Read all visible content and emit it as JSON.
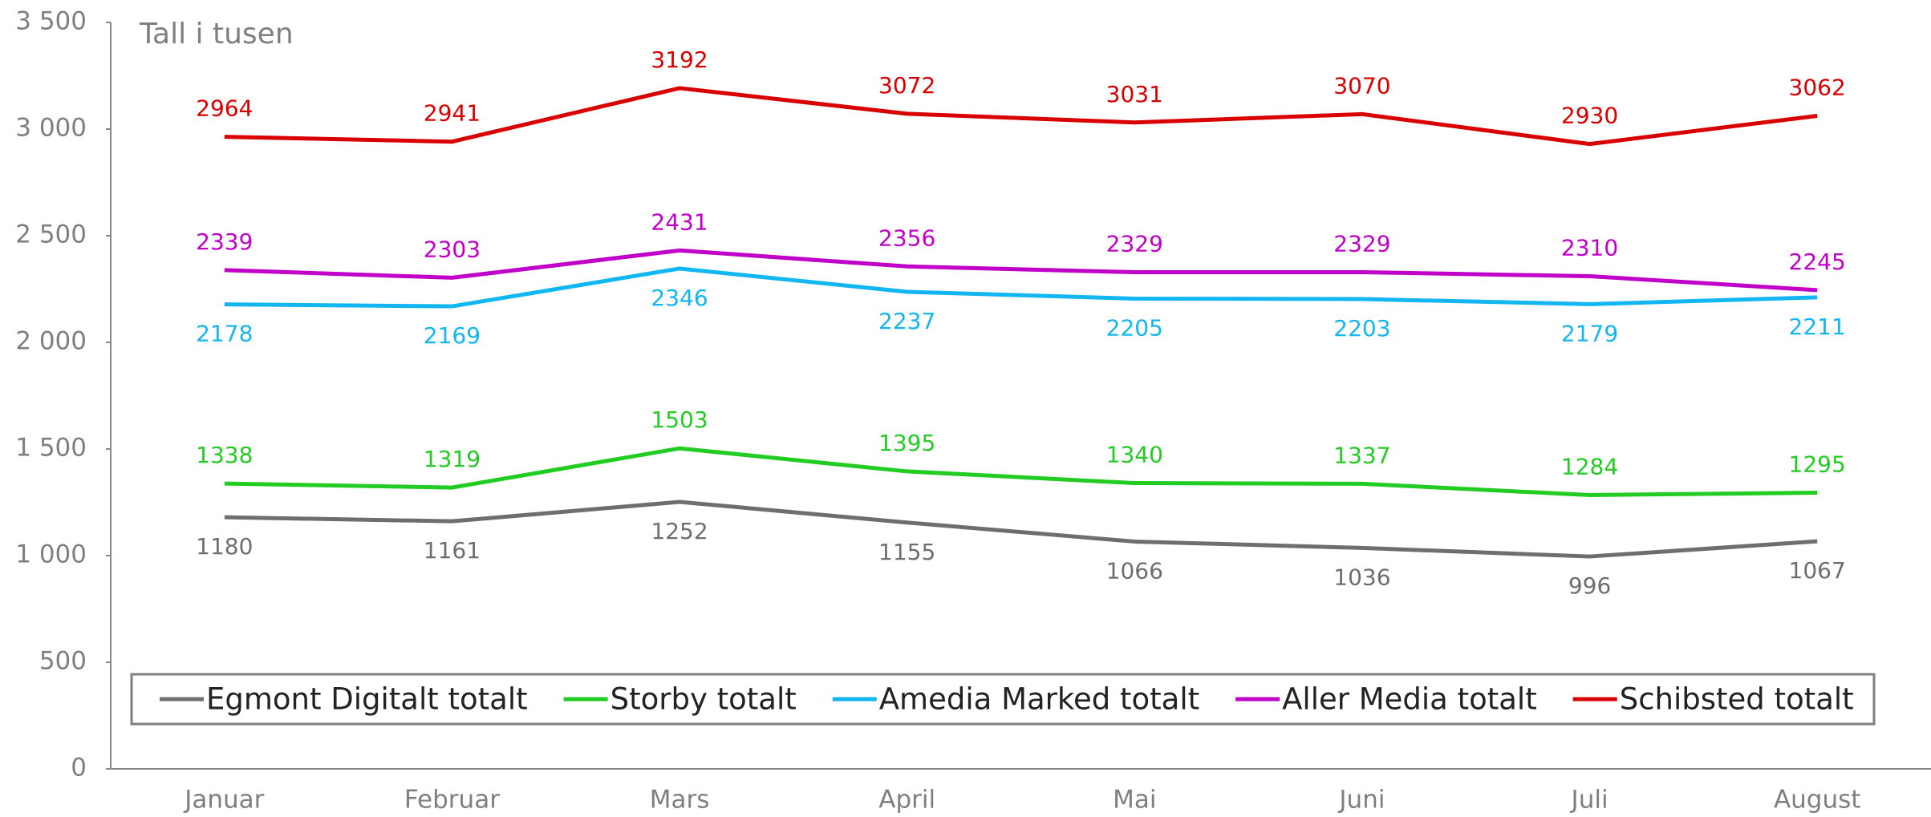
{
  "chart_data": {
    "type": "line",
    "annotation": "Tall i tusen",
    "categories": [
      "Januar",
      "Februar",
      "Mars",
      "April",
      "Mai",
      "Juni",
      "Juli",
      "August"
    ],
    "series": [
      {
        "name": "Egmont Digitalt totalt",
        "color": "#6e6e6e",
        "values": [
          1180,
          1161,
          1252,
          1155,
          1066,
          1036,
          996,
          1067
        ]
      },
      {
        "name": "Storby totalt",
        "color": "#22cc22",
        "values": [
          1338,
          1319,
          1503,
          1395,
          1340,
          1337,
          1284,
          1295
        ]
      },
      {
        "name": "Amedia Marked totalt",
        "color": "#12b6f0",
        "values": [
          2178,
          2169,
          2346,
          2237,
          2205,
          2203,
          2179,
          2211
        ]
      },
      {
        "name": "Aller Media totalt",
        "color": "#c000c8",
        "values": [
          2339,
          2303,
          2431,
          2356,
          2329,
          2329,
          2310,
          2245
        ]
      },
      {
        "name": "Schibsted totalt",
        "color": "#d90000",
        "values": [
          2964,
          2941,
          3192,
          3072,
          3031,
          3070,
          2930,
          3062
        ]
      }
    ],
    "ylim": [
      0,
      3500
    ],
    "yticks": [
      0,
      500,
      {
        "value": 1000,
        "label": "1 000"
      },
      {
        "value": 1500,
        "label": "1 500"
      },
      {
        "value": 2000,
        "label": "2 000"
      },
      {
        "value": 2500,
        "label": "2 500"
      },
      {
        "value": 3000,
        "label": "3 000"
      },
      {
        "value": 3500,
        "label": "3 500"
      }
    ],
    "legend": "bottom"
  }
}
